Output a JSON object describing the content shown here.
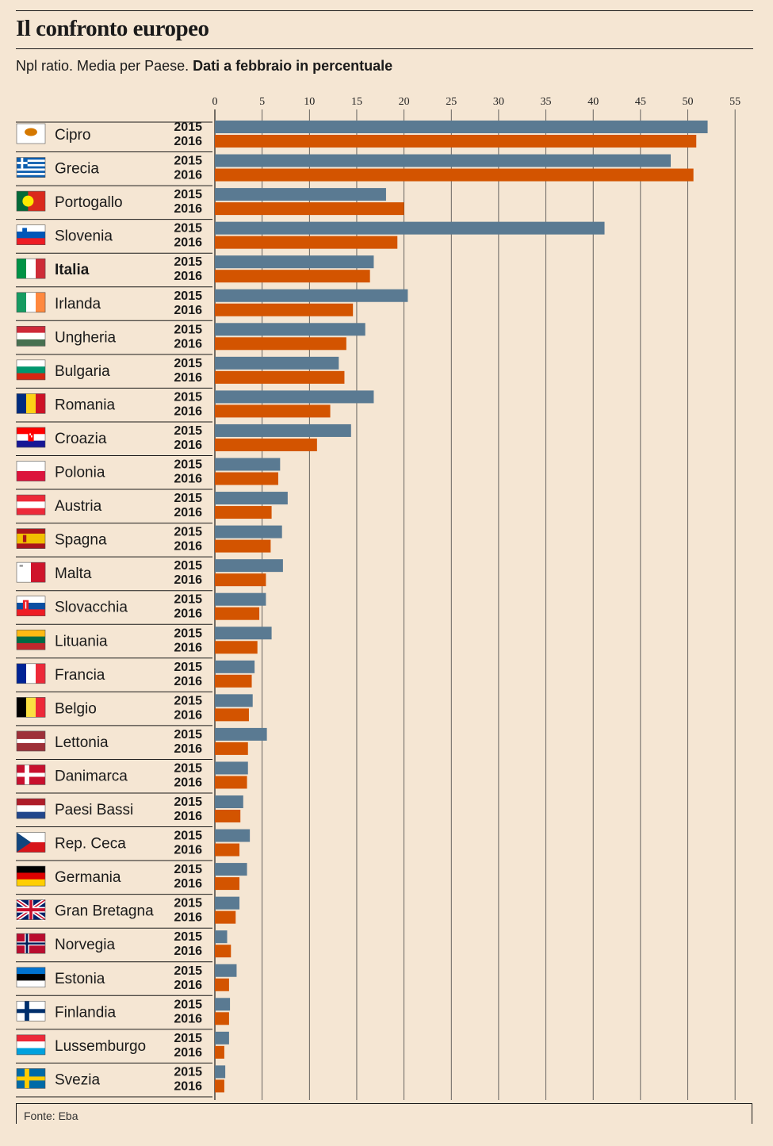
{
  "header": {
    "title": "Il confronto europeo",
    "subtitle_plain": "Npl ratio. Media per Paese.",
    "subtitle_bold": "Dati a febbraio in percentuale"
  },
  "footer": {
    "source": "Fonte: Eba"
  },
  "colors": {
    "series_2015": "#5a7a92",
    "series_2016": "#d35400",
    "background": "#f5e6d3"
  },
  "chart_data": {
    "type": "bar",
    "orientation": "horizontal",
    "title": "Il confronto europeo",
    "subtitle": "Npl ratio. Media per Paese. Dati a febbraio in percentuale",
    "xlim": [
      0,
      55
    ],
    "xticks": [
      0,
      5,
      10,
      15,
      20,
      25,
      30,
      35,
      40,
      45,
      50,
      55
    ],
    "grid": true,
    "series_names": [
      "2015",
      "2016"
    ],
    "categories": [
      {
        "name": "Cipro",
        "flag": "cyprus-flag",
        "bold": false,
        "v2015": 52.1,
        "v2016": 50.9
      },
      {
        "name": "Grecia",
        "flag": "greece-flag",
        "bold": false,
        "v2015": 48.2,
        "v2016": 50.6
      },
      {
        "name": "Portogallo",
        "flag": "portugal-flag",
        "bold": false,
        "v2015": 18.1,
        "v2016": 20.0
      },
      {
        "name": "Slovenia",
        "flag": "slovenia-flag",
        "bold": false,
        "v2015": 41.2,
        "v2016": 19.3
      },
      {
        "name": "Italia",
        "flag": "italy-flag",
        "bold": true,
        "v2015": 16.8,
        "v2016": 16.4
      },
      {
        "name": "Irlanda",
        "flag": "ireland-flag",
        "bold": false,
        "v2015": 20.4,
        "v2016": 14.6
      },
      {
        "name": "Ungheria",
        "flag": "hungary-flag",
        "bold": false,
        "v2015": 15.9,
        "v2016": 13.9
      },
      {
        "name": "Bulgaria",
        "flag": "bulgaria-flag",
        "bold": false,
        "v2015": 13.1,
        "v2016": 13.7
      },
      {
        "name": "Romania",
        "flag": "romania-flag",
        "bold": false,
        "v2015": 16.8,
        "v2016": 12.2
      },
      {
        "name": "Croazia",
        "flag": "croatia-flag",
        "bold": false,
        "v2015": 14.4,
        "v2016": 10.8
      },
      {
        "name": "Polonia",
        "flag": "poland-flag",
        "bold": false,
        "v2015": 6.9,
        "v2016": 6.7
      },
      {
        "name": "Austria",
        "flag": "austria-flag",
        "bold": false,
        "v2015": 7.7,
        "v2016": 6.0
      },
      {
        "name": "Spagna",
        "flag": "spain-flag",
        "bold": false,
        "v2015": 7.1,
        "v2016": 5.9
      },
      {
        "name": "Malta",
        "flag": "malta-flag",
        "bold": false,
        "v2015": 7.2,
        "v2016": 5.4
      },
      {
        "name": "Slovacchia",
        "flag": "slovakia-flag",
        "bold": false,
        "v2015": 5.4,
        "v2016": 4.7
      },
      {
        "name": "Lituania",
        "flag": "lithuania-flag",
        "bold": false,
        "v2015": 6.0,
        "v2016": 4.5
      },
      {
        "name": "Francia",
        "flag": "france-flag",
        "bold": false,
        "v2015": 4.2,
        "v2016": 3.9
      },
      {
        "name": "Belgio",
        "flag": "belgium-flag",
        "bold": false,
        "v2015": 4.0,
        "v2016": 3.6
      },
      {
        "name": "Lettonia",
        "flag": "latvia-flag",
        "bold": false,
        "v2015": 5.5,
        "v2016": 3.5
      },
      {
        "name": "Danimarca",
        "flag": "denmark-flag",
        "bold": false,
        "v2015": 3.5,
        "v2016": 3.4
      },
      {
        "name": "Paesi Bassi",
        "flag": "netherlands-flag",
        "bold": false,
        "v2015": 3.0,
        "v2016": 2.7
      },
      {
        "name": "Rep. Ceca",
        "flag": "czech-flag",
        "bold": false,
        "v2015": 3.7,
        "v2016": 2.6
      },
      {
        "name": "Germania",
        "flag": "germany-flag",
        "bold": false,
        "v2015": 3.4,
        "v2016": 2.6
      },
      {
        "name": "Gran Bretagna",
        "flag": "uk-flag",
        "bold": false,
        "v2015": 2.6,
        "v2016": 2.2
      },
      {
        "name": "Norvegia",
        "flag": "norway-flag",
        "bold": false,
        "v2015": 1.3,
        "v2016": 1.7
      },
      {
        "name": "Estonia",
        "flag": "estonia-flag",
        "bold": false,
        "v2015": 2.3,
        "v2016": 1.5
      },
      {
        "name": "Finlandia",
        "flag": "finland-flag",
        "bold": false,
        "v2015": 1.6,
        "v2016": 1.5
      },
      {
        "name": "Lussemburgo",
        "flag": "luxembourg-flag",
        "bold": false,
        "v2015": 1.5,
        "v2016": 1.0
      },
      {
        "name": "Svezia",
        "flag": "sweden-flag",
        "bold": false,
        "v2015": 1.1,
        "v2016": 1.0
      }
    ]
  }
}
